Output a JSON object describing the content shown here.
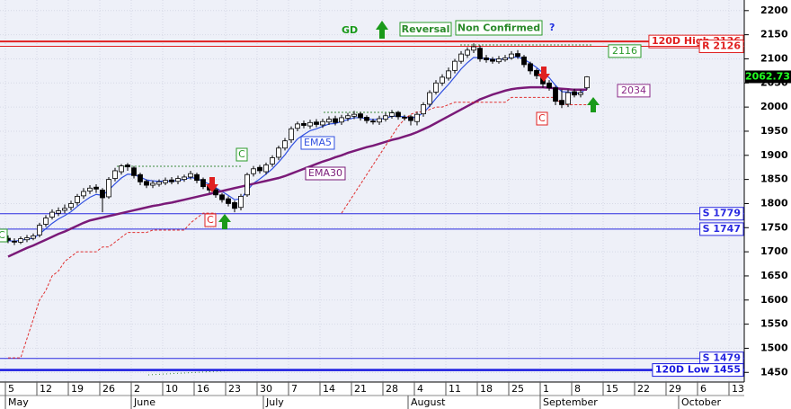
{
  "chart_data": {
    "type": "candlestick",
    "categories": [
      "5",
      null,
      null,
      null,
      null,
      "12",
      null,
      null,
      null,
      null,
      "19",
      null,
      null,
      null,
      null,
      "26",
      null,
      null,
      null,
      null,
      "2",
      null,
      null,
      null,
      null,
      "10",
      null,
      null,
      null,
      null,
      "16",
      null,
      null,
      null,
      null,
      "23",
      null,
      null,
      null,
      null,
      "30",
      null,
      null,
      null,
      null,
      "7",
      null,
      null,
      null,
      null,
      "14",
      null,
      null,
      null,
      null,
      "21",
      null,
      null,
      null,
      null,
      "28",
      null,
      null,
      null,
      null,
      "4",
      null,
      null,
      null,
      null,
      "11",
      null,
      null,
      null,
      null,
      "18",
      null,
      null,
      null,
      null,
      "25",
      null,
      null,
      null,
      null,
      "1",
      null,
      null,
      null,
      null,
      "8",
      null,
      null,
      null,
      null,
      "15",
      null,
      null,
      null,
      null,
      "22",
      null,
      null,
      null,
      null,
      "29",
      null,
      null,
      null,
      null,
      "6",
      null,
      null,
      null,
      null,
      "13",
      null,
      null,
      null,
      null
    ],
    "months": [
      "May",
      null,
      null,
      null,
      null,
      null,
      null,
      null,
      null,
      null,
      null,
      null,
      null,
      null,
      null,
      null,
      null,
      null,
      null,
      null,
      "June",
      null,
      null,
      null,
      null,
      null,
      null,
      null,
      null,
      null,
      null,
      null,
      null,
      null,
      null,
      null,
      null,
      null,
      null,
      null,
      null,
      "July",
      null,
      null,
      null,
      null,
      null,
      null,
      null,
      null,
      null,
      null,
      null,
      null,
      null,
      null,
      null,
      null,
      null,
      null,
      null,
      null,
      null,
      null,
      "August",
      null,
      null,
      null,
      null,
      null,
      null,
      null,
      null,
      null,
      null,
      null,
      null,
      null,
      null,
      null,
      null,
      null,
      null,
      null,
      null,
      "September",
      null,
      null,
      null,
      null,
      null,
      null,
      null,
      null,
      null,
      null,
      null,
      null,
      null,
      null,
      null,
      null,
      null,
      null,
      null,
      null,
      null,
      "October",
      null,
      null,
      null,
      null,
      null,
      null,
      null,
      null,
      null,
      null,
      null,
      null
    ],
    "open": [
      1728,
      1722,
      1720,
      1725,
      1728,
      1735,
      1757,
      1772,
      1780,
      1786,
      1792,
      1802,
      1816,
      1826,
      1834,
      1828,
      1814,
      1852,
      1866,
      1880,
      1874,
      1860,
      1846,
      1838,
      1840,
      1843,
      1849,
      1846,
      1850,
      1855,
      1860,
      1850,
      1838,
      1829,
      1818,
      1810,
      1802,
      1792,
      1818,
      1862,
      1875,
      1866,
      1882,
      1896,
      1915,
      1932,
      1956,
      1966,
      1961,
      1969,
      1963,
      1969,
      1976,
      1969,
      1977,
      1981,
      1986,
      1979,
      1971,
      1969,
      1975,
      1981,
      1989,
      1979,
      1980,
      1970,
      1986,
      2006,
      2031,
      2050,
      2060,
      2076,
      2095,
      2108,
      2118,
      2122,
      2102,
      2099,
      2094,
      2098,
      2102,
      2111,
      2104,
      2090,
      2076,
      2068,
      2050,
      2040,
      2014,
      2006,
      2032,
      2026,
      2040,
      null,
      null,
      null,
      null,
      null,
      null,
      null,
      null,
      null,
      null,
      null,
      null,
      null,
      null,
      null,
      null,
      null,
      null,
      null,
      null,
      null,
      null,
      null,
      null,
      null,
      null,
      null
    ],
    "high": [
      1734,
      1728,
      1732,
      1735,
      1738,
      1760,
      1776,
      1788,
      1792,
      1798,
      1806,
      1820,
      1832,
      1838,
      1840,
      1832,
      1855,
      1874,
      1882,
      1884,
      1878,
      1864,
      1850,
      1848,
      1850,
      1854,
      1855,
      1858,
      1860,
      1868,
      1864,
      1854,
      1842,
      1834,
      1822,
      1815,
      1806,
      1820,
      1864,
      1878,
      1880,
      1885,
      1900,
      1920,
      1936,
      1960,
      1970,
      1972,
      1974,
      1975,
      1976,
      1981,
      1982,
      1984,
      1988,
      1992,
      1990,
      1983,
      1976,
      1982,
      1988,
      1994,
      1992,
      1984,
      1984,
      1990,
      2010,
      2035,
      2056,
      2068,
      2082,
      2100,
      2116,
      2124,
      2132,
      2128,
      2108,
      2104,
      2106,
      2108,
      2116,
      2118,
      2108,
      2094,
      2080,
      2072,
      2056,
      2044,
      2036,
      2036,
      2038,
      2036,
      2064,
      null,
      null,
      null,
      null,
      null,
      null,
      null,
      null,
      null,
      null,
      null,
      null,
      null,
      null,
      null,
      null,
      null,
      null,
      null,
      null,
      null,
      null,
      null,
      null,
      null,
      null,
      null
    ],
    "low": [
      1718,
      1714,
      1716,
      1720,
      1724,
      1730,
      1752,
      1767,
      1774,
      1780,
      1786,
      1796,
      1810,
      1820,
      1822,
      1782,
      1810,
      1846,
      1860,
      1868,
      1852,
      1838,
      1832,
      1832,
      1835,
      1838,
      1840,
      1840,
      1845,
      1850,
      1842,
      1830,
      1822,
      1812,
      1802,
      1794,
      1782,
      1786,
      1814,
      1856,
      1862,
      1860,
      1876,
      1890,
      1910,
      1926,
      1950,
      1956,
      1955,
      1958,
      1957,
      1963,
      1962,
      1963,
      1971,
      1975,
      1972,
      1966,
      1964,
      1963,
      1970,
      1976,
      1974,
      1972,
      1962,
      1962,
      1980,
      2000,
      2026,
      2044,
      2055,
      2070,
      2090,
      2102,
      2112,
      2094,
      2092,
      2090,
      2090,
      2094,
      2098,
      2100,
      2082,
      2068,
      2058,
      2040,
      2034,
      2004,
      1998,
      2000,
      2020,
      2020,
      2036,
      null,
      null,
      null,
      null,
      null,
      null,
      null,
      null,
      null,
      null,
      null,
      null,
      null,
      null,
      null,
      null,
      null,
      null,
      null,
      null,
      null,
      null,
      null,
      null,
      null,
      null,
      null
    ],
    "close": [
      1724,
      1720,
      1727,
      1729,
      1733,
      1755,
      1770,
      1782,
      1785,
      1790,
      1800,
      1815,
      1825,
      1832,
      1830,
      1812,
      1850,
      1868,
      1878,
      1876,
      1858,
      1845,
      1838,
      1842,
      1845,
      1848,
      1845,
      1852,
      1855,
      1862,
      1848,
      1835,
      1828,
      1818,
      1808,
      1800,
      1790,
      1815,
      1860,
      1872,
      1868,
      1880,
      1895,
      1915,
      1930,
      1955,
      1965,
      1962,
      1968,
      1964,
      1970,
      1975,
      1968,
      1978,
      1982,
      1985,
      1978,
      1972,
      1970,
      1976,
      1982,
      1988,
      1980,
      1978,
      1972,
      1985,
      2005,
      2030,
      2050,
      2062,
      2075,
      2095,
      2110,
      2118,
      2125,
      2100,
      2098,
      2095,
      2100,
      2102,
      2110,
      2105,
      2088,
      2075,
      2065,
      2048,
      2040,
      2012,
      2005,
      2030,
      2025,
      2030,
      2062.73,
      null,
      null,
      null,
      null,
      null,
      null,
      null,
      null,
      null,
      null,
      null,
      null,
      null,
      null,
      null,
      null,
      null,
      null,
      null,
      null,
      null,
      null,
      null,
      null,
      null,
      null,
      null
    ],
    "up_color": "#ffffff",
    "down_color": "#000000",
    "series": [
      {
        "name": "EMA5",
        "color": "#2f4fe0",
        "values": [
          1723,
          1722,
          1724,
          1726,
          1728,
          1737,
          1748,
          1759,
          1768,
          1775,
          1783,
          1794,
          1804,
          1813,
          1819,
          1817,
          1828,
          1841,
          1853,
          1861,
          1860,
          1855,
          1849,
          1847,
          1846,
          1847,
          1846,
          1848,
          1850,
          1854,
          1852,
          1846,
          1840,
          1833,
          1825,
          1817,
          1808,
          1810,
          1827,
          1842,
          1851,
          1861,
          1872,
          1886,
          1901,
          1919,
          1934,
          1943,
          1951,
          1955,
          1960,
          1965,
          1966,
          1970,
          1974,
          1978,
          1978,
          1976,
          1974,
          1975,
          1977,
          1981,
          1981,
          1980,
          1977,
          1980,
          1988,
          2002,
          2018,
          2033,
          2047,
          2063,
          2079,
          2092,
          2103,
          2102,
          2101,
          2099,
          2099,
          2100,
          2103,
          2104,
          2099,
          2091,
          2082,
          2071,
          2061,
          2045,
          2032,
          2031,
          2029,
          2029,
          2040,
          null,
          null,
          null,
          null,
          null,
          null,
          null,
          null,
          null,
          null,
          null,
          null,
          null,
          null,
          null,
          null,
          null,
          null,
          null,
          null,
          null,
          null,
          null,
          null,
          null,
          null,
          null
        ]
      },
      {
        "name": "EMA30",
        "color": "#7a1a78",
        "values": [
          1690,
          1696,
          1702,
          1708,
          1713,
          1719,
          1725,
          1731,
          1737,
          1742,
          1748,
          1754,
          1760,
          1765,
          1768,
          1771,
          1774,
          1777,
          1780,
          1783,
          1786,
          1789,
          1792,
          1795,
          1797,
          1800,
          1802,
          1805,
          1808,
          1811,
          1814,
          1817,
          1820,
          1823,
          1826,
          1829,
          1832,
          1835,
          1838,
          1841,
          1844,
          1847,
          1850,
          1853,
          1857,
          1862,
          1867,
          1872,
          1877,
          1882,
          1887,
          1891,
          1896,
          1900,
          1905,
          1909,
          1913,
          1917,
          1920,
          1924,
          1928,
          1932,
          1935,
          1939,
          1943,
          1948,
          1954,
          1960,
          1967,
          1974,
          1981,
          1988,
          1995,
          2002,
          2009,
          2016,
          2021,
          2026,
          2030,
          2034,
          2037,
          2039,
          2040,
          2041,
          2041,
          2041,
          2040,
          2039,
          2038,
          2037,
          2036,
          2036,
          2036,
          null,
          null,
          null,
          null,
          null,
          null,
          null,
          null,
          null,
          null,
          null,
          null,
          null,
          null,
          null,
          null,
          null,
          null,
          null,
          null,
          null,
          null,
          null,
          null,
          null,
          null,
          null
        ]
      },
      {
        "color": "#e03030",
        "dashed": true,
        "values": [
          1480,
          1480,
          1480,
          1520,
          1560,
          1600,
          1620,
          1650,
          1660,
          1680,
          1690,
          1700,
          1700,
          1700,
          1700,
          1710,
          1710,
          1720,
          1730,
          1740,
          1740,
          1740,
          1740,
          1745,
          1745,
          1745,
          1745,
          1745,
          1745,
          1760,
          1770,
          1780,
          1780,
          1780,
          null,
          null,
          null,
          null,
          null,
          null,
          null,
          null,
          null,
          null,
          null,
          null,
          null,
          null,
          null,
          null,
          null,
          null,
          null,
          1780,
          1800,
          1820,
          1840,
          1860,
          1880,
          1900,
          1920,
          1940,
          1960,
          1975,
          1985,
          1990,
          1990,
          1995,
          2000,
          2000,
          2005,
          2010,
          2010,
          2010,
          2010,
          2010,
          2010,
          2010,
          2010,
          2010,
          2020,
          2020,
          2020,
          2020,
          2020,
          2020,
          2020,
          2020,
          2005,
          2005,
          2005,
          2005,
          2005,
          null,
          null,
          null,
          null,
          null,
          null,
          null,
          null,
          null,
          null,
          null,
          null,
          null,
          null,
          null,
          null,
          null,
          null,
          null,
          null,
          null,
          null,
          null,
          null,
          null,
          null,
          null
        ]
      }
    ],
    "ylim": [
      1430,
      2222
    ],
    "yticks": [
      1450,
      1500,
      1550,
      1600,
      1650,
      1700,
      1750,
      1800,
      1850,
      1900,
      1950,
      2000,
      2050,
      2100,
      2150,
      2200
    ],
    "grid": true,
    "levels": [
      {
        "label": "120D High 2136",
        "value": 2136,
        "color": "#e02020",
        "width": 2
      },
      {
        "label": "R 2126",
        "value": 2126,
        "color": "#e02020",
        "width": 1
      },
      {
        "label": "S 1779",
        "value": 1779,
        "color": "#2a2ae0",
        "width": 1
      },
      {
        "label": "S 1747",
        "value": 1747,
        "color": "#2a2ae0",
        "width": 1
      },
      {
        "label": "S 1479",
        "value": 1479,
        "color": "#2a2ae0",
        "width": 1
      },
      {
        "label": "120D Low 1455",
        "value": 1455,
        "color": "#1a1ae0",
        "width": 2.5
      }
    ],
    "last_price": 2062.73,
    "price_labels": [
      {
        "value": 2116,
        "color": "#2a9a2a"
      },
      {
        "value": 2034,
        "color": "#8a2a88"
      }
    ],
    "annotations": {
      "gd": "GD",
      "reversal": "Reversal",
      "non_confirmed": "Non Confirmed",
      "question": "?",
      "c_marks": [
        "C",
        "C",
        "C",
        "C"
      ]
    }
  }
}
